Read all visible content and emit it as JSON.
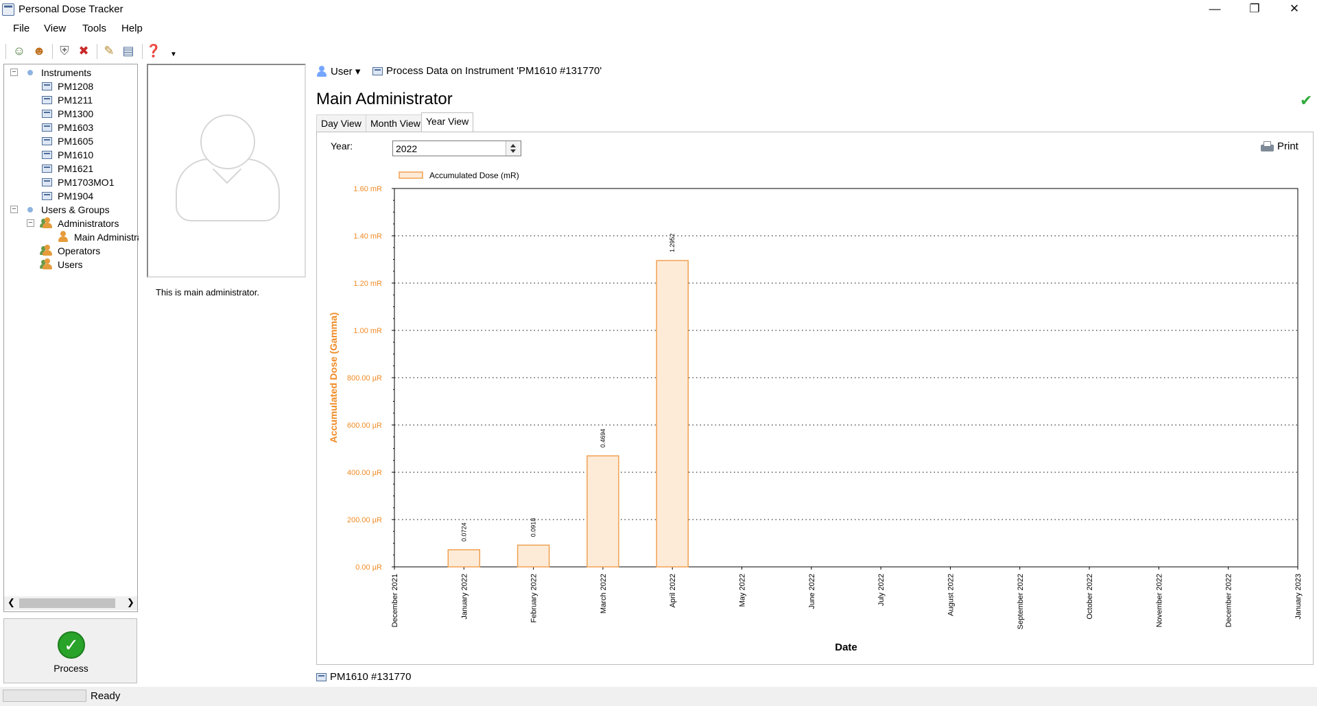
{
  "window": {
    "title": "Personal Dose Tracker",
    "minimize_glyph": "—",
    "maximize_glyph": "❐",
    "close_glyph": "✕"
  },
  "menu": [
    "File",
    "View",
    "Tools",
    "Help"
  ],
  "toolbar": {
    "icons": [
      "add-user-icon",
      "user-settings-icon",
      "shield-icon",
      "shield-delete-icon",
      "edit-icon",
      "instrument-icon",
      "help-icon",
      "overflow-icon"
    ]
  },
  "tree": {
    "instruments_label": "Instruments",
    "instruments": [
      "PM1208",
      "PM1211",
      "PM1300",
      "PM1603",
      "PM1605",
      "PM1610",
      "PM1621",
      "PM1703MO1",
      "PM1904"
    ],
    "users_groups_label": "Users & Groups",
    "administrators_label": "Administrators",
    "main_admin_label": "Main Administra",
    "operators_label": "Operators",
    "users_label": "Users"
  },
  "process_button": {
    "label": "Process"
  },
  "status": {
    "text": "Ready"
  },
  "profile": {
    "description": "This is main administrator."
  },
  "breadcrumb": {
    "user": "User ▾",
    "process": "Process Data on Instrument 'PM1610 #131770'"
  },
  "page_title": "Main Administrator",
  "tabs": [
    "Day View",
    "Month View",
    "Year View"
  ],
  "active_tab": "Year View",
  "year": {
    "label": "Year:",
    "value": "2022"
  },
  "print_label": "Print",
  "footer_instrument": "PM1610 #131770",
  "colors": {
    "accent_orange": "#f08a24",
    "bar_fill": "#fdebd8",
    "bar_stroke": "#f0a050",
    "ok_green": "#2eab3b"
  },
  "chart_data": {
    "type": "bar",
    "legend": "Accumulated Dose (mR)",
    "legend_position": "top-left",
    "ylabel": "Accumulated Dose (Gamma)",
    "xlabel": "Date",
    "y_unit": "mR",
    "ylim": [
      0,
      1.6
    ],
    "y_ticks": [
      {
        "value": 0.0,
        "label": "0.00 µR"
      },
      {
        "value": 0.2,
        "label": "200.00 µR"
      },
      {
        "value": 0.4,
        "label": "400.00 µR"
      },
      {
        "value": 0.6,
        "label": "600.00 µR"
      },
      {
        "value": 0.8,
        "label": "800.00 µR"
      },
      {
        "value": 1.0,
        "label": "1.00 mR"
      },
      {
        "value": 1.2,
        "label": "1.20 mR"
      },
      {
        "value": 1.4,
        "label": "1.40 mR"
      },
      {
        "value": 1.6,
        "label": "1.60 mR"
      }
    ],
    "x_ticks": [
      "December 2021",
      "January 2022",
      "February 2022",
      "March 2022",
      "April 2022",
      "May 2022",
      "June 2022",
      "July 2022",
      "August 2022",
      "September 2022",
      "October 2022",
      "November 2022",
      "December 2022",
      "January 2023"
    ],
    "grid": "horizontal dotted",
    "bars": [
      {
        "x": "January 2022",
        "value": 0.0724,
        "label": "0.0724"
      },
      {
        "x": "February 2022",
        "value": 0.0918,
        "label": "0.0918"
      },
      {
        "x": "March 2022",
        "value": 0.4694,
        "label": "0.4694"
      },
      {
        "x": "April 2022",
        "value": 1.2952,
        "label": "1.2952"
      }
    ]
  }
}
